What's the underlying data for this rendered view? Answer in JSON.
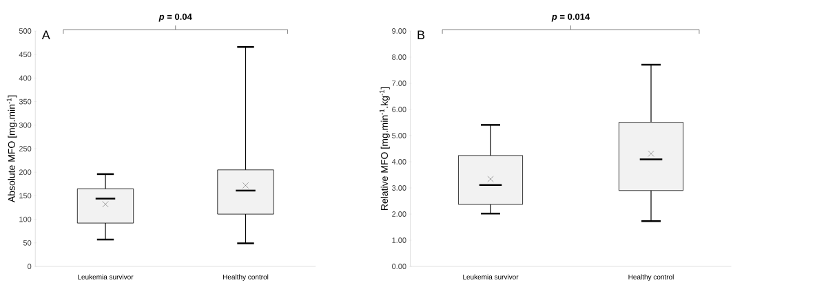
{
  "chart_data": [
    {
      "type": "box",
      "categories": [
        "Leukemia survivor",
        "Healthy control"
      ],
      "ylabel": "Absolute MFO [mg.min$^{-1}$]",
      "color": "#f2f2f2",
      "boxes": [
        {
          "low": 57,
          "q1": 92,
          "median": 144,
          "q3": 165,
          "high": 196,
          "mean": 132
        },
        {
          "low": 49,
          "q1": 111,
          "median": 161,
          "q3": 205,
          "high": 466,
          "mean": 172
        }
      ],
      "ylim": [
        0,
        500
      ],
      "yticks": [
        0,
        50,
        100,
        150,
        200,
        250,
        300,
        350,
        400,
        450,
        500
      ],
      "marker": "cross",
      "annotations": [
        "*p* = 0.04",
        "A"
      ]
    },
    {
      "type": "box",
      "categories": [
        "Leukemia survivor",
        "Healthy control"
      ],
      "ylabel": "Relative MFO [mg.min$^{-1}$.kg$^{-1}$]",
      "color": "#f2f2f2",
      "boxes": [
        {
          "low": 2.02,
          "q1": 2.37,
          "median": 3.11,
          "q3": 4.24,
          "high": 5.41,
          "mean": 3.34
        },
        {
          "low": 1.73,
          "q1": 2.9,
          "median": 4.09,
          "q3": 5.51,
          "high": 7.71,
          "mean": 4.31
        }
      ],
      "ylim": [
        0,
        9
      ],
      "yticks": [
        {
          "value": 0,
          "label": "0.00"
        },
        {
          "value": 1,
          "label": "1.00"
        },
        {
          "value": 2,
          "label": "2.00"
        },
        {
          "value": 3,
          "label": "3.00"
        },
        {
          "value": 4,
          "label": "4.00"
        },
        {
          "value": 5,
          "label": "5.00"
        },
        {
          "value": 6,
          "label": "6.00"
        },
        {
          "value": 7,
          "label": "7.00"
        },
        {
          "value": 8,
          "label": "8.00"
        },
        {
          "value": 9,
          "label": "9.00"
        }
      ],
      "marker": "cross",
      "annotations": [
        "*p* = 0.014",
        "B"
      ]
    }
  ]
}
